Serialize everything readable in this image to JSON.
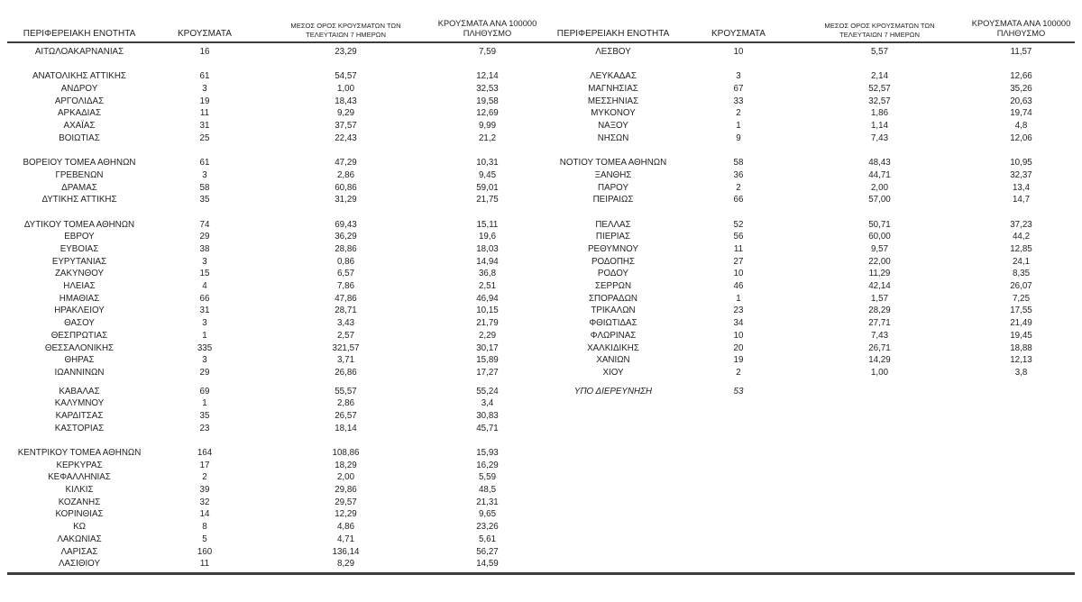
{
  "styles": {
    "background": "#ffffff",
    "text_color": "#1f1f1f",
    "rule_color": "#3c3c3c"
  },
  "columns": {
    "region": "ΠΕΡΙΦΕΡΕΙΑΚΗ ΕΝΟΤΗΤΑ",
    "cases": "ΚΡΟΥΣΜΑΤΑ",
    "avg7_line1": "ΜΕΣΟΣ ΟΡΟΣ ΚΡΟΥΣΜΑΤΩΝ ΤΩΝ",
    "avg7_line2": "ΤΕΛΕΥΤΑΙΩΝ 7 ΗΜΕΡΩΝ",
    "per100k_line1": "ΚΡΟΥΣΜΑΤΑ ΑΝΑ 100000",
    "per100k_line2": "ΠΛΗΘΥΣΜΟ"
  },
  "tables": [
    {
      "name": "left",
      "groups": [
        {
          "rows": [
            [
              "ΑΙΤΩΛΟΑΚΑΡΝΑΝΙΑΣ",
              "16",
              "23,29",
              "7,59"
            ]
          ]
        },
        {
          "gap": "normal",
          "rows": [
            [
              "ΑΝΑΤΟΛΙΚΗΣ ΑΤΤΙΚΗΣ",
              "61",
              "54,57",
              "12,14"
            ],
            [
              "ΑΝΔΡΟΥ",
              "3",
              "1,00",
              "32,53"
            ],
            [
              "ΑΡΓΟΛΙΔΑΣ",
              "19",
              "18,43",
              "19,58"
            ],
            [
              "ΑΡΚΑΔΙΑΣ",
              "11",
              "9,29",
              "12,69"
            ],
            [
              "ΑΧΑΪΑΣ",
              "31",
              "37,57",
              "9,99"
            ],
            [
              "ΒΟΙΩΤΙΑΣ",
              "25",
              "22,43",
              "21,2"
            ]
          ]
        },
        {
          "gap": "normal",
          "rows": [
            [
              "ΒΟΡΕΙΟΥ ΤΟΜΕΑ ΑΘΗΝΩΝ",
              "61",
              "47,29",
              "10,31"
            ],
            [
              "ΓΡΕΒΕΝΩΝ",
              "3",
              "2,86",
              "9,45"
            ],
            [
              "ΔΡΑΜΑΣ",
              "58",
              "60,86",
              "59,01"
            ],
            [
              "ΔΥΤΙΚΗΣ ΑΤΤΙΚΗΣ",
              "35",
              "31,29",
              "21,75"
            ]
          ]
        },
        {
          "gap": "normal",
          "rows": [
            [
              "ΔΥΤΙΚΟΥ ΤΟΜΕΑ ΑΘΗΝΩΝ",
              "74",
              "69,43",
              "15,11"
            ],
            [
              "ΕΒΡΟΥ",
              "29",
              "36,29",
              "19,6"
            ],
            [
              "ΕΥΒΟΙΑΣ",
              "38",
              "28,86",
              "18,03"
            ],
            [
              "ΕΥΡΥΤΑΝΙΑΣ",
              "3",
              "0,86",
              "14,94"
            ],
            [
              "ΖΑΚΥΝΘΟΥ",
              "15",
              "6,57",
              "36,8"
            ],
            [
              "ΗΛΕΙΑΣ",
              "4",
              "7,86",
              "2,51"
            ],
            [
              "ΗΜΑΘΙΑΣ",
              "66",
              "47,86",
              "46,94"
            ],
            [
              "ΗΡΑΚΛΕΙΟΥ",
              "31",
              "28,71",
              "10,15"
            ],
            [
              "ΘΑΣΟΥ",
              "3",
              "3,43",
              "21,79"
            ],
            [
              "ΘΕΣΠΡΩΤΙΑΣ",
              "1",
              "2,57",
              "2,29"
            ],
            [
              "ΘΕΣΣΑΛΟΝΙΚΗΣ",
              "335",
              "321,57",
              "30,17"
            ],
            [
              "ΘΗΡΑΣ",
              "3",
              "3,71",
              "15,89"
            ],
            [
              "ΙΩΑΝΝΙΝΩΝ",
              "29",
              "26,86",
              "17,27"
            ]
          ]
        },
        {
          "gap": "small",
          "rows": [
            [
              "ΚΑΒΑΛΑΣ",
              "69",
              "55,57",
              "55,24"
            ],
            [
              "ΚΑΛΥΜΝΟΥ",
              "1",
              "2,86",
              "3,4"
            ],
            [
              "ΚΑΡΔΙΤΣΑΣ",
              "35",
              "26,57",
              "30,83"
            ],
            [
              "ΚΑΣΤΟΡΙΑΣ",
              "23",
              "18,14",
              "45,71"
            ]
          ]
        },
        {
          "gap": "normal",
          "rows": [
            [
              "ΚΕΝΤΡΙΚΟΥ ΤΟΜΕΑ ΑΘΗΝΩΝ",
              "164",
              "108,86",
              "15,93"
            ],
            [
              "ΚΕΡΚΥΡΑΣ",
              "17",
              "18,29",
              "16,29"
            ],
            [
              "ΚΕΦΑΛΛΗΝΙΑΣ",
              "2",
              "2,00",
              "5,59"
            ],
            [
              "ΚΙΛΚΙΣ",
              "39",
              "29,86",
              "48,5"
            ],
            [
              "ΚΟΖΑΝΗΣ",
              "32",
              "29,57",
              "21,31"
            ],
            [
              "ΚΟΡΙΝΘΙΑΣ",
              "14",
              "12,29",
              "9,65"
            ],
            [
              "ΚΩ",
              "8",
              "4,86",
              "23,26"
            ],
            [
              "ΛΑΚΩΝΙΑΣ",
              "5",
              "4,71",
              "5,61"
            ],
            [
              "ΛΑΡΙΣΑΣ",
              "160",
              "136,14",
              "56,27"
            ],
            [
              "ΛΑΣΙΘΙΟΥ",
              "11",
              "8,29",
              "14,59"
            ]
          ]
        }
      ]
    },
    {
      "name": "right",
      "groups": [
        {
          "rows": [
            [
              "ΛΕΣΒΟΥ",
              "10",
              "5,57",
              "11,57"
            ]
          ]
        },
        {
          "gap": "normal",
          "rows": [
            [
              "ΛΕΥΚΑΔΑΣ",
              "3",
              "2,14",
              "12,66"
            ],
            [
              "ΜΑΓΝΗΣΙΑΣ",
              "67",
              "52,57",
              "35,26"
            ],
            [
              "ΜΕΣΣΗΝΙΑΣ",
              "33",
              "32,57",
              "20,63"
            ],
            [
              "ΜΥΚΟΝΟΥ",
              "2",
              "1,86",
              "19,74"
            ],
            [
              "ΝΑΞΟΥ",
              "1",
              "1,14",
              "4,8"
            ],
            [
              "ΝΗΣΩΝ",
              "9",
              "7,43",
              "12,06"
            ]
          ]
        },
        {
          "gap": "normal",
          "rows": [
            [
              "ΝΟΤΙΟΥ ΤΟΜΕΑ ΑΘΗΝΩΝ",
              "58",
              "48,43",
              "10,95"
            ],
            [
              "ΞΑΝΘΗΣ",
              "36",
              "44,71",
              "32,37"
            ],
            [
              "ΠΑΡΟΥ",
              "2",
              "2,00",
              "13,4"
            ],
            [
              "ΠΕΙΡΑΙΩΣ",
              "66",
              "57,00",
              "14,7"
            ]
          ]
        },
        {
          "gap": "normal",
          "rows": [
            [
              "ΠΕΛΛΑΣ",
              "52",
              "50,71",
              "37,23"
            ],
            [
              "ΠΙΕΡΙΑΣ",
              "56",
              "60,00",
              "44,2"
            ],
            [
              "ΡΕΘΥΜΝΟΥ",
              "11",
              "9,57",
              "12,85"
            ],
            [
              "ΡΟΔΟΠΗΣ",
              "27",
              "22,00",
              "24,1"
            ],
            [
              "ΡΟΔΟΥ",
              "10",
              "11,29",
              "8,35"
            ],
            [
              "ΣΕΡΡΩΝ",
              "46",
              "42,14",
              "26,07"
            ],
            [
              "ΣΠΟΡΑΔΩΝ",
              "1",
              "1,57",
              "7,25"
            ],
            [
              "ΤΡΙΚΑΛΩΝ",
              "23",
              "28,29",
              "17,55"
            ],
            [
              "ΦΘΙΩΤΙΔΑΣ",
              "34",
              "27,71",
              "21,49"
            ],
            [
              "ΦΛΩΡΙΝΑΣ",
              "10",
              "7,43",
              "19,45"
            ],
            [
              "ΧΑΛΚΙΔΙΚΗΣ",
              "20",
              "26,71",
              "18,88"
            ],
            [
              "ΧΑΝΙΩΝ",
              "19",
              "14,29",
              "12,13"
            ],
            [
              "ΧΙΟΥ",
              "2",
              "1,00",
              "3,8"
            ]
          ]
        },
        {
          "gap": "small",
          "italic": true,
          "rows": [
            [
              "ΥΠΟ ΔΙΕΡΕΥΝΗΣΗ",
              "53",
              "",
              ""
            ]
          ]
        }
      ]
    }
  ]
}
